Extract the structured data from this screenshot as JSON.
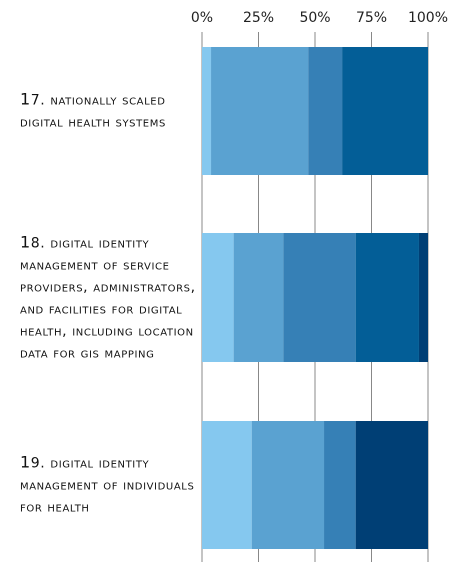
{
  "chart_data": {
    "type": "stacked-bar-horizontal",
    "categories": [
      "17. nationally scaled digital health systems",
      "18. digital identity management of service providers, administrators, and facilities for digital health, including location data for gis mapping",
      "19. digital identity management of individuals for health"
    ],
    "series": [
      {
        "color": "#85c8ef",
        "values": [
          4,
          14,
          22
        ]
      },
      {
        "color": "#5aa2d1",
        "values": [
          43,
          22,
          32
        ]
      },
      {
        "color": "#3680b6",
        "values": [
          15,
          32,
          14
        ]
      },
      {
        "color": "#035e97",
        "values": [
          38,
          28,
          0
        ]
      },
      {
        "color": "#003f75",
        "values": [
          0,
          4,
          32
        ]
      }
    ],
    "xlim": [
      0,
      100
    ],
    "xticks": [
      {
        "value": 0,
        "label": "0%"
      },
      {
        "value": 25,
        "label": "25%"
      },
      {
        "value": 50,
        "label": "50%"
      },
      {
        "value": 75,
        "label": "75%"
      },
      {
        "value": 100,
        "label": "100%"
      }
    ],
    "grid": true
  }
}
